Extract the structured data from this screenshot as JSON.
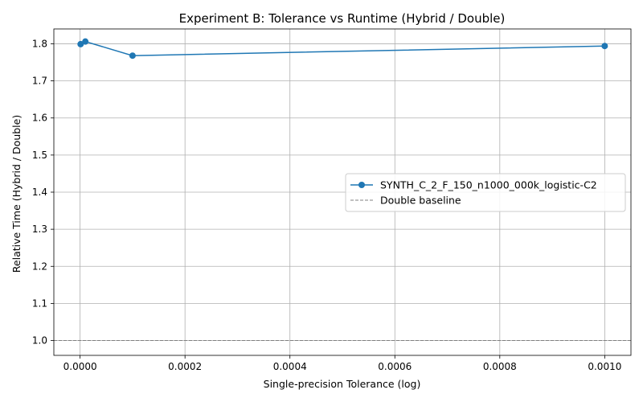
{
  "chart_data": {
    "type": "line",
    "title": "Experiment B: Tolerance vs Runtime (Hybrid / Double)",
    "xlabel": "Single-precision Tolerance (log)",
    "ylabel": "Relative Time (Hybrid / Double)",
    "xlim": [
      -5e-05,
      0.00105
    ],
    "ylim": [
      0.96,
      1.84
    ],
    "x_ticks": [
      0.0,
      0.0002,
      0.0004,
      0.0006,
      0.0008,
      0.001
    ],
    "x_tick_labels": [
      "0.0000",
      "0.0002",
      "0.0004",
      "0.0006",
      "0.0008",
      "0.0010"
    ],
    "y_ticks": [
      1.0,
      1.1,
      1.2,
      1.3,
      1.4,
      1.5,
      1.6,
      1.7,
      1.8
    ],
    "y_tick_labels": [
      "1.0",
      "1.1",
      "1.2",
      "1.3",
      "1.4",
      "1.5",
      "1.6",
      "1.7",
      "1.8"
    ],
    "grid": true,
    "legend_position": "center-right",
    "series": [
      {
        "name": "SYNTH_C_2_F_150_n1000_000k_logistic-C2",
        "color": "#1f77b4",
        "marker": "circle",
        "x": [
          1e-06,
          1e-05,
          0.0001,
          0.001
        ],
        "y": [
          1.799,
          1.806,
          1.768,
          1.794
        ]
      }
    ],
    "reference_lines": [
      {
        "name": "Double baseline",
        "y": 1.0,
        "color": "#808080",
        "style": "dashed"
      }
    ]
  }
}
